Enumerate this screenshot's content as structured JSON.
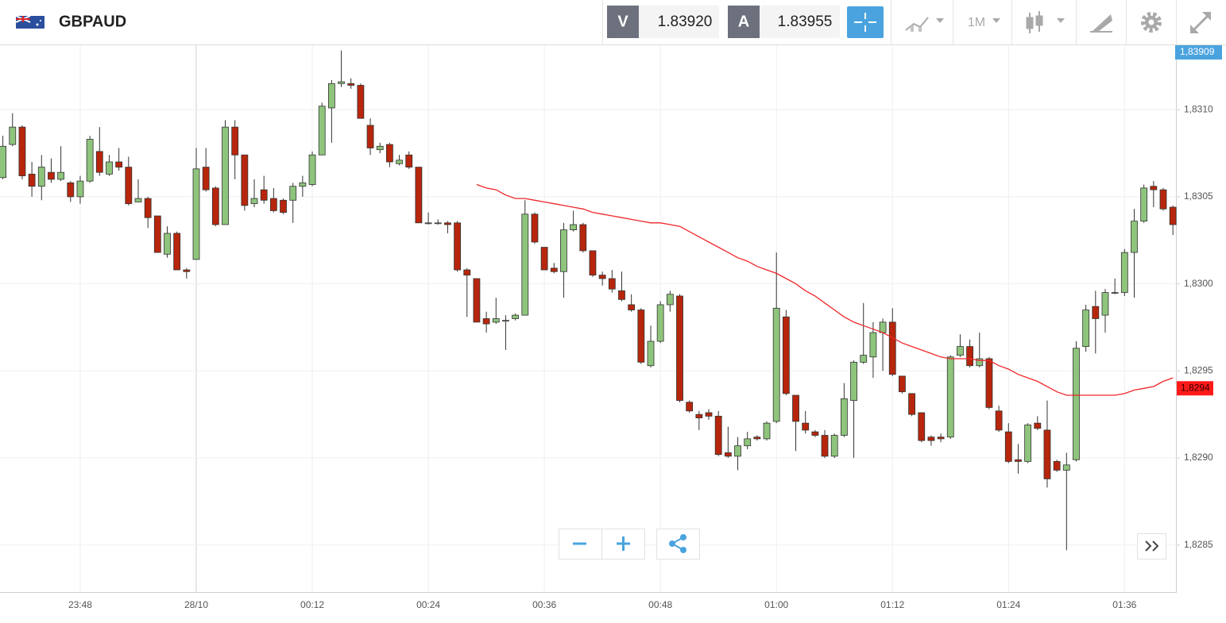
{
  "toolbar": {
    "symbol": "GBPAUD",
    "sell_label": "V",
    "sell_price": "1.83920",
    "buy_label": "A",
    "buy_price": "1.83955",
    "timeframe": "1M"
  },
  "chart_data": {
    "type": "candlestick",
    "categories": [
      null,
      null,
      null,
      null,
      null,
      null,
      null,
      null,
      "23:48",
      null,
      null,
      null,
      null,
      null,
      null,
      null,
      null,
      null,
      null,
      null,
      "28/10",
      null,
      null,
      null,
      null,
      null,
      null,
      null,
      null,
      null,
      null,
      null,
      "00:12",
      null,
      null,
      null,
      null,
      null,
      null,
      null,
      null,
      null,
      null,
      null,
      "00:24",
      null,
      null,
      null,
      null,
      null,
      null,
      null,
      null,
      null,
      null,
      null,
      "00:36",
      null,
      null,
      null,
      null,
      null,
      null,
      null,
      null,
      null,
      null,
      null,
      "00:48",
      null,
      null,
      null,
      null,
      null,
      null,
      null,
      null,
      null,
      null,
      null,
      "01:00",
      null,
      null,
      null,
      null,
      null,
      null,
      null,
      null,
      null,
      null,
      null,
      "01:12",
      null,
      null,
      null,
      null,
      null,
      null,
      null,
      null,
      null,
      null,
      null,
      "01:24",
      null,
      null,
      null,
      null,
      null,
      null,
      null,
      null,
      null,
      null,
      null,
      "01:36",
      null,
      null,
      null,
      null,
      null
    ],
    "open": [
      1.83061,
      1.8308,
      1.8309,
      1.83063,
      1.83056,
      1.83064,
      1.8306,
      1.83058,
      1.8305,
      1.83059,
      1.83076,
      1.83063,
      1.8307,
      1.83067,
      1.83047,
      1.83049,
      1.83039,
      1.83017,
      1.83029,
      1.83008,
      1.83014,
      1.83067,
      1.83055,
      1.83034,
      1.8309,
      1.83074,
      1.83046,
      1.83054,
      1.83049,
      1.83048,
      1.83048,
      1.83056,
      1.83057,
      1.83074,
      1.83101,
      1.83115,
      1.83115,
      1.83114,
      1.83091,
      1.83077,
      1.8308,
      1.83069,
      1.83074,
      1.83067,
      1.83035,
      1.83035,
      1.83035,
      1.83035,
      1.83008,
      1.83003,
      1.8298,
      1.82978,
      1.82979,
      1.8298,
      1.82982,
      1.8304,
      1.83021,
      1.83009,
      1.83007,
      1.83031,
      1.83034,
      1.83019,
      1.83005,
      1.83003,
      1.82996,
      1.82988,
      1.82985,
      1.82953,
      1.82967,
      1.82988,
      1.82993,
      1.82932,
      1.82925,
      1.82926,
      1.82924,
      1.82903,
      1.82901,
      1.82907,
      1.82912,
      1.82911,
      1.82921,
      1.82981,
      1.82936,
      1.8292,
      1.82915,
      1.82913,
      1.82901,
      1.82913,
      1.82933,
      1.82955,
      1.82958,
      1.82972,
      1.82978,
      1.82947,
      1.82937,
      1.82926,
      1.82912,
      1.82912,
      1.82912,
      1.82959,
      1.82964,
      1.82953,
      1.82957,
      1.82927,
      1.82915,
      1.82899,
      1.82898,
      1.8292,
      1.82916,
      1.82898,
      1.82893,
      1.82899,
      1.82964,
      1.82987,
      1.82982,
      1.82995,
      1.82995,
      1.83018,
      1.83036,
      1.83056,
      1.83054,
      1.83044
    ],
    "high": [
      1.83085,
      1.83098,
      1.83091,
      1.8307,
      1.83074,
      1.83072,
      1.83079,
      1.83059,
      1.83062,
      1.83085,
      1.8309,
      1.83074,
      1.83078,
      1.83073,
      1.8306,
      1.8305,
      1.83039,
      1.83033,
      1.8303,
      1.83009,
      1.83078,
      1.83078,
      1.83056,
      1.83094,
      1.83094,
      1.83074,
      1.8306,
      1.83062,
      1.83055,
      1.83049,
      1.83058,
      1.83062,
      1.83076,
      1.83104,
      1.83117,
      1.83134,
      1.83118,
      1.83115,
      1.83095,
      1.83081,
      1.83081,
      1.83074,
      1.83076,
      1.83067,
      1.83041,
      1.83037,
      1.83036,
      1.83036,
      1.83009,
      1.83003,
      1.82984,
      1.82992,
      1.82982,
      1.82983,
      1.83048,
      1.83041,
      1.83021,
      1.83012,
      1.83035,
      1.83042,
      1.83035,
      1.83019,
      1.83007,
      1.83008,
      1.83007,
      1.82994,
      1.82986,
      1.82976,
      1.8299,
      1.82996,
      1.82994,
      1.82933,
      1.82927,
      1.82928,
      1.82927,
      1.82918,
      1.82912,
      1.82915,
      1.82913,
      1.82921,
      1.83018,
      1.82985,
      1.82936,
      1.82927,
      1.82916,
      1.82916,
      1.82914,
      1.82943,
      1.82956,
      1.82989,
      1.82978,
      1.8298,
      1.82986,
      1.82947,
      1.82937,
      1.82926,
      1.82913,
      1.82914,
      1.82959,
      1.82971,
      1.82968,
      1.82972,
      1.82958,
      1.8293,
      1.8292,
      1.82908,
      1.8292,
      1.82924,
      1.82933,
      1.82899,
      1.82903,
      1.82967,
      1.82988,
      1.82996,
      1.82997,
      1.83003,
      1.8302,
      1.83043,
      1.83057,
      1.83059,
      1.83055,
      1.83045
    ],
    "low": [
      1.8306,
      1.83079,
      1.8306,
      1.8305,
      1.83048,
      1.83058,
      1.83059,
      1.83047,
      1.83046,
      1.83058,
      1.83062,
      1.83062,
      1.83065,
      1.83045,
      1.83047,
      1.83032,
      1.83018,
      1.83015,
      1.83008,
      1.83003,
      1.83014,
      1.83053,
      1.83033,
      1.83034,
      1.8306,
      1.83042,
      1.83044,
      1.83046,
      1.83041,
      1.8304,
      1.83035,
      1.8305,
      1.83056,
      1.83074,
      1.83081,
      1.83113,
      1.83112,
      1.83095,
      1.83074,
      1.83075,
      1.83067,
      1.83068,
      1.83066,
      1.83035,
      1.83034,
      1.83034,
      1.83029,
      1.83007,
      1.82981,
      1.82978,
      1.82972,
      1.82977,
      1.82962,
      1.82979,
      1.82982,
      1.83023,
      1.83008,
      1.83006,
      1.82992,
      1.8303,
      1.83018,
      1.83004,
      1.82999,
      1.82995,
      1.8299,
      1.82984,
      1.82954,
      1.82952,
      1.82966,
      1.82984,
      1.82932,
      1.82926,
      1.82916,
      1.82922,
      1.82901,
      1.829,
      1.82893,
      1.82905,
      1.8291,
      1.8291,
      1.8292,
      1.82936,
      1.82904,
      1.82914,
      1.82912,
      1.829,
      1.829,
      1.82912,
      1.829,
      1.82954,
      1.82946,
      1.8295,
      1.82947,
      1.82937,
      1.82924,
      1.82909,
      1.82907,
      1.82909,
      1.82911,
      1.82958,
      1.82952,
      1.82952,
      1.82928,
      1.82915,
      1.82897,
      1.82891,
      1.82897,
      1.82916,
      1.82883,
      1.82892,
      1.82847,
      1.82898,
      1.82961,
      1.8296,
      1.82972,
      1.82994,
      1.82993,
      1.82992,
      1.83035,
      1.83044,
      1.83042,
      1.83028
    ],
    "close": [
      1.83079,
      1.8309,
      1.83062,
      1.83056,
      1.83067,
      1.8306,
      1.83064,
      1.8305,
      1.83059,
      1.83083,
      1.83064,
      1.8307,
      1.83067,
      1.83046,
      1.83049,
      1.83038,
      1.83018,
      1.83029,
      1.83008,
      1.83007,
      1.83066,
      1.83054,
      1.83034,
      1.8309,
      1.83074,
      1.83045,
      1.83049,
      1.83048,
      1.83042,
      1.83041,
      1.83056,
      1.83058,
      1.83074,
      1.83102,
      1.83115,
      1.83116,
      1.83114,
      1.83095,
      1.83078,
      1.83079,
      1.8307,
      1.83071,
      1.83067,
      1.83035,
      1.83035,
      1.83035,
      1.83034,
      1.83008,
      1.83005,
      1.82978,
      1.82977,
      1.8298,
      1.82979,
      1.82982,
      1.8304,
      1.83024,
      1.83008,
      1.83007,
      1.83031,
      1.83034,
      1.83019,
      1.83005,
      1.83003,
      1.82997,
      1.82991,
      1.82985,
      1.82955,
      1.82967,
      1.82988,
      1.82994,
      1.82933,
      1.82927,
      1.82923,
      1.82924,
      1.82902,
      1.82901,
      1.82907,
      1.82911,
      1.82911,
      1.8292,
      1.82986,
      1.82937,
      1.82921,
      1.82916,
      1.82913,
      1.82901,
      1.82913,
      1.82934,
      1.82955,
      1.82959,
      1.82972,
      1.82978,
      1.82948,
      1.82938,
      1.82925,
      1.8291,
      1.8291,
      1.82911,
      1.82958,
      1.82964,
      1.82953,
      1.82957,
      1.82929,
      1.82916,
      1.82898,
      1.82898,
      1.82919,
      1.82917,
      1.82888,
      1.82893,
      1.82896,
      1.82963,
      1.82985,
      1.8298,
      1.82995,
      1.82995,
      1.83018,
      1.83036,
      1.83055,
      1.83054,
      1.83043,
      1.83034
    ],
    "up_color": "#8ec47c",
    "down_color": "#b7260c",
    "outline_color": "#333333",
    "ma": {
      "color": "#f0262a",
      "values": [
        null,
        null,
        null,
        null,
        null,
        null,
        null,
        null,
        null,
        null,
        null,
        null,
        null,
        null,
        null,
        null,
        null,
        null,
        null,
        null,
        null,
        null,
        null,
        null,
        null,
        null,
        null,
        null,
        null,
        null,
        null,
        null,
        null,
        null,
        null,
        null,
        null,
        null,
        null,
        null,
        null,
        null,
        null,
        null,
        null,
        null,
        null,
        null,
        null,
        1.83057,
        1.83055,
        1.83054,
        1.83051,
        1.83049,
        1.83049,
        1.83048,
        1.83047,
        1.83046,
        1.83045,
        1.83044,
        1.83043,
        1.83041,
        1.8304,
        1.83039,
        1.83038,
        1.83037,
        1.83036,
        1.83035,
        1.83035,
        1.83034,
        1.83033,
        1.8303,
        1.83027,
        1.83024,
        1.83021,
        1.83018,
        1.83015,
        1.83013,
        1.8301,
        1.83008,
        1.83006,
        1.83003,
        1.83,
        1.82996,
        1.82993,
        1.82989,
        1.82985,
        1.82981,
        1.82978,
        1.82976,
        1.82974,
        1.82972,
        1.82969,
        1.82966,
        1.82964,
        1.82962,
        1.8296,
        1.82958,
        1.82957,
        1.82957,
        1.82957,
        1.82956,
        1.82956,
        1.82953,
        1.82951,
        1.82948,
        1.82946,
        1.82944,
        1.82941,
        1.82938,
        1.82936,
        1.82936,
        1.82936,
        1.82936,
        1.82936,
        1.82936,
        1.82937,
        1.82939,
        1.8294,
        1.82941,
        1.82944,
        1.82946
      ]
    },
    "ma_label": {
      "value": 1.8294,
      "label": "1,8294"
    },
    "price_label": "1,83909",
    "ylim": [
      1.82823,
      1.83137
    ],
    "yticks": [
      {
        "value": 1.8285,
        "label": "1,8285"
      },
      {
        "value": 1.829,
        "label": "1,8290"
      },
      {
        "value": 1.8295,
        "label": "1,8295"
      },
      {
        "value": 1.83,
        "label": "1,8300"
      },
      {
        "value": 1.8305,
        "label": "1,8305"
      },
      {
        "value": 1.831,
        "label": "1,8310"
      }
    ],
    "grid": true
  }
}
